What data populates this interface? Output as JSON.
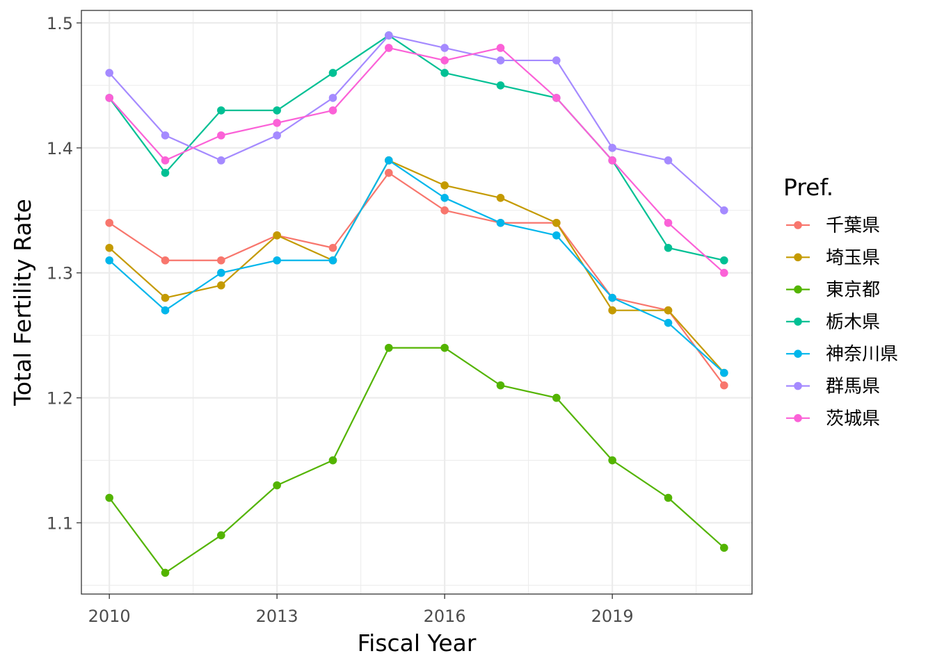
{
  "chart_data": {
    "type": "line",
    "xlabel": "Fiscal Year",
    "ylabel": "Total Fertility Rate",
    "xlim": [
      2009.5,
      2021.5
    ],
    "ylim": [
      1.043,
      1.51
    ],
    "x_ticks": [
      2010,
      2013,
      2016,
      2019
    ],
    "y_ticks": [
      1.1,
      1.2,
      1.3,
      1.4,
      1.5
    ],
    "grid": true,
    "legend_title": "Pref.",
    "legend_position": "right",
    "x": [
      2010,
      2011,
      2012,
      2013,
      2014,
      2015,
      2016,
      2017,
      2018,
      2019,
      2020,
      2021
    ],
    "series": [
      {
        "name": "千葉県",
        "color": "#F8766D",
        "values": [
          1.34,
          1.31,
          1.31,
          1.33,
          1.32,
          1.38,
          1.35,
          1.34,
          1.34,
          1.28,
          1.27,
          1.21
        ]
      },
      {
        "name": "埼玉県",
        "color": "#C49A00",
        "values": [
          1.32,
          1.28,
          1.29,
          1.33,
          1.31,
          1.39,
          1.37,
          1.36,
          1.34,
          1.27,
          1.27,
          1.22
        ]
      },
      {
        "name": "東京都",
        "color": "#53B400",
        "values": [
          1.12,
          1.06,
          1.09,
          1.13,
          1.15,
          1.24,
          1.24,
          1.21,
          1.2,
          1.15,
          1.12,
          1.08
        ]
      },
      {
        "name": "栃木県",
        "color": "#00C094",
        "values": [
          1.44,
          1.38,
          1.43,
          1.43,
          1.46,
          1.49,
          1.46,
          1.45,
          1.44,
          1.39,
          1.32,
          1.31
        ]
      },
      {
        "name": "神奈川県",
        "color": "#00B6EB",
        "values": [
          1.31,
          1.27,
          1.3,
          1.31,
          1.31,
          1.39,
          1.36,
          1.34,
          1.33,
          1.28,
          1.26,
          1.22
        ]
      },
      {
        "name": "群馬県",
        "color": "#A58AFF",
        "values": [
          1.46,
          1.41,
          1.39,
          1.41,
          1.44,
          1.49,
          1.48,
          1.47,
          1.47,
          1.4,
          1.39,
          1.35
        ]
      },
      {
        "name": "茨城県",
        "color": "#FB61D7",
        "values": [
          1.44,
          1.39,
          1.41,
          1.42,
          1.43,
          1.48,
          1.47,
          1.48,
          1.44,
          1.39,
          1.34,
          1.3
        ]
      }
    ]
  }
}
